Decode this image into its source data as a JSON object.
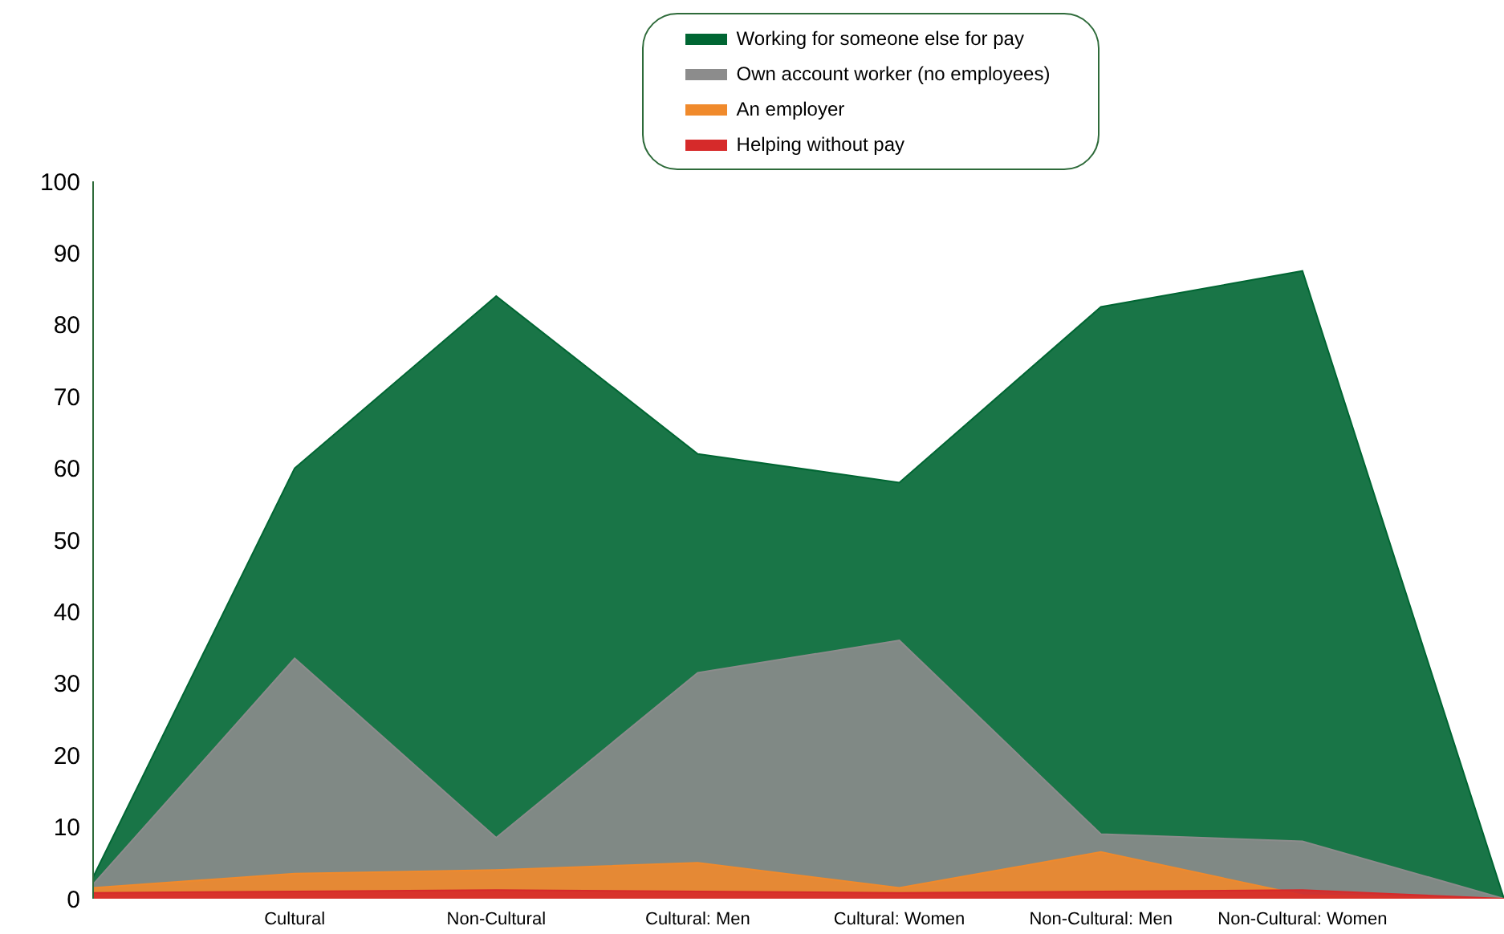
{
  "chart_data": {
    "type": "area",
    "categories": [
      null,
      "Cultural",
      "Non-Cultural",
      "Cultural: Men",
      "Cultural: Women",
      "Non-Cultural: Men",
      "Non-Cultural: Women",
      null
    ],
    "series": [
      {
        "name": "Working for someone else for pay",
        "color": "#006633",
        "values": [
          3,
          60,
          84,
          62,
          58,
          82.5,
          87.5,
          0
        ]
      },
      {
        "name": "Own account worker (no employees)",
        "color": "#8c8c8c",
        "values": [
          2,
          33.5,
          8.5,
          31.5,
          36,
          9,
          8,
          0
        ]
      },
      {
        "name": "An employer",
        "color": "#f08a2c",
        "values": [
          1.5,
          3.5,
          4,
          5,
          1.5,
          6.5,
          0.5,
          0
        ]
      },
      {
        "name": "Helping without pay",
        "color": "#d62a2a",
        "values": [
          0.8,
          1,
          1.2,
          1,
          0.8,
          1,
          1.2,
          0
        ]
      }
    ],
    "ylim": [
      0,
      100
    ],
    "yticks": [
      0,
      10,
      20,
      30,
      40,
      50,
      60,
      70,
      80,
      90,
      100
    ],
    "grid": false,
    "legend": "top"
  }
}
